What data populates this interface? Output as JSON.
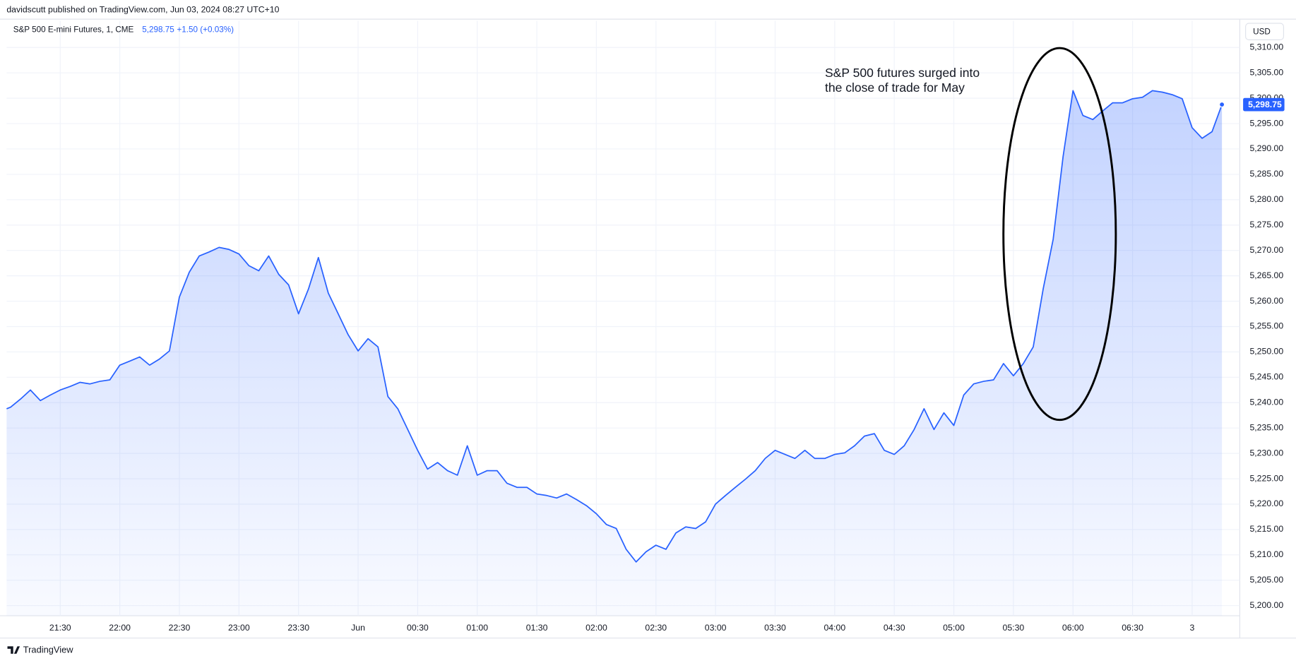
{
  "header": {
    "publisher": "davidscutt published on TradingView.com, Jun 03, 2024 08:27 UTC+10",
    "symbol": "S&P 500 E-mini Futures, 1, CME",
    "price": "5,298.75",
    "change": "+1.50 (+0.03%)",
    "currency": "USD",
    "footer": "TradingView"
  },
  "chart_data": {
    "type": "area",
    "annotation": [
      "S&P 500 futures surged into",
      "the close of trade for May"
    ],
    "last_price_label": "5,298.75",
    "series": [
      {
        "name": "S&P 500 E-mini Futures",
        "color": "#2962ff",
        "x": [
          3,
          5,
          10,
          15,
          20,
          25,
          30,
          35,
          40,
          45,
          50,
          55,
          60,
          65,
          70,
          75,
          80,
          85,
          90,
          95,
          100,
          105,
          110,
          115,
          120,
          125,
          130,
          135,
          140,
          145,
          150,
          155,
          160,
          165,
          170,
          175,
          180,
          185,
          190,
          195,
          200,
          205,
          210,
          215,
          220,
          225,
          230,
          235,
          240,
          245,
          250,
          255,
          260,
          265,
          270,
          275,
          280,
          285,
          290,
          295,
          300,
          305,
          310,
          315,
          320,
          325,
          330,
          335,
          340,
          345,
          350,
          355,
          360,
          365,
          370,
          375,
          380,
          385,
          390,
          395,
          400,
          405,
          410,
          415,
          420,
          425,
          430,
          435,
          440,
          445,
          450,
          455,
          460,
          465,
          470,
          475,
          480,
          485,
          490,
          495,
          500,
          505,
          510,
          515,
          520,
          525,
          530,
          535,
          540,
          545,
          550,
          555,
          560,
          565,
          570,
          575,
          580,
          585,
          590,
          595,
          600,
          605,
          610,
          615
        ],
        "values": [
          5238.8,
          5239.1,
          5240.7,
          5242.5,
          5240.4,
          5241.5,
          5242.5,
          5243.2,
          5244,
          5243.7,
          5244.2,
          5244.5,
          5247.4,
          5248.2,
          5249,
          5247.4,
          5248.6,
          5250.2,
          5260.8,
          5265.7,
          5268.9,
          5269.7,
          5270.6,
          5270.2,
          5269.3,
          5267,
          5266,
          5268.9,
          5265.3,
          5263.2,
          5257.5,
          5262.4,
          5268.6,
          5261.6,
          5257.5,
          5253.4,
          5250.2,
          5252.6,
          5251,
          5241.2,
          5238.8,
          5234.7,
          5230.6,
          5226.9,
          5228.2,
          5226.6,
          5225.7,
          5231.5,
          5225.7,
          5226.6,
          5226.6,
          5224.1,
          5223.3,
          5223.3,
          5222,
          5221.7,
          5221.2,
          5222,
          5220.9,
          5219.7,
          5218.1,
          5216,
          5215.2,
          5211.1,
          5208.6,
          5210.6,
          5211.9,
          5211.1,
          5214.3,
          5215.5,
          5215.2,
          5216.5,
          5220,
          5221.7,
          5223.3,
          5224.9,
          5226.6,
          5229,
          5230.6,
          5229.8,
          5229,
          5230.6,
          5229,
          5229,
          5229.8,
          5230.1,
          5231.5,
          5233.4,
          5233.9,
          5230.6,
          5229.8,
          5231.5,
          5234.7,
          5238.8,
          5234.7,
          5238,
          5235.5,
          5241.5,
          5243.7,
          5244.2,
          5244.5,
          5247.7,
          5245.3,
          5247.7,
          5251,
          5262.4,
          5272.2,
          5288.5,
          5301.5,
          5296.6,
          5295.8,
          5297.5,
          5299.1,
          5299.1,
          5299.9,
          5300.2,
          5301.5,
          5301.2,
          5300.7,
          5299.9,
          5294.2,
          5292.1,
          5293.4,
          5298.75
        ]
      }
    ],
    "xlim": [
      3,
      624
    ],
    "xticks": [
      {
        "value": 30,
        "label": "21:30"
      },
      {
        "value": 60,
        "label": "22:00"
      },
      {
        "value": 90,
        "label": "22:30"
      },
      {
        "value": 120,
        "label": "23:00"
      },
      {
        "value": 150,
        "label": "23:30"
      },
      {
        "value": 180,
        "label": "Jun"
      },
      {
        "value": 210,
        "label": "00:30"
      },
      {
        "value": 240,
        "label": "01:00"
      },
      {
        "value": 270,
        "label": "01:30"
      },
      {
        "value": 300,
        "label": "02:00"
      },
      {
        "value": 330,
        "label": "02:30"
      },
      {
        "value": 360,
        "label": "03:00"
      },
      {
        "value": 390,
        "label": "03:30"
      },
      {
        "value": 420,
        "label": "04:00"
      },
      {
        "value": 450,
        "label": "04:30"
      },
      {
        "value": 480,
        "label": "05:00"
      },
      {
        "value": 510,
        "label": "05:30"
      },
      {
        "value": 540,
        "label": "06:00"
      },
      {
        "value": 570,
        "label": "06:30"
      },
      {
        "value": 600,
        "label": "3"
      }
    ],
    "ylim": [
      5198,
      5312
    ],
    "yticks": [
      {
        "value": 5200,
        "label": "5,200.00"
      },
      {
        "value": 5205,
        "label": "5,205.00"
      },
      {
        "value": 5210,
        "label": "5,210.00"
      },
      {
        "value": 5215,
        "label": "5,215.00"
      },
      {
        "value": 5220,
        "label": "5,220.00"
      },
      {
        "value": 5225,
        "label": "5,225.00"
      },
      {
        "value": 5230,
        "label": "5,230.00"
      },
      {
        "value": 5235,
        "label": "5,235.00"
      },
      {
        "value": 5240,
        "label": "5,240.00"
      },
      {
        "value": 5245,
        "label": "5,245.00"
      },
      {
        "value": 5250,
        "label": "5,250.00"
      },
      {
        "value": 5255,
        "label": "5,255.00"
      },
      {
        "value": 5260,
        "label": "5,260.00"
      },
      {
        "value": 5265,
        "label": "5,265.00"
      },
      {
        "value": 5270,
        "label": "5,270.00"
      },
      {
        "value": 5275,
        "label": "5,275.00"
      },
      {
        "value": 5280,
        "label": "5,280.00"
      },
      {
        "value": 5285,
        "label": "5,285.00"
      },
      {
        "value": 5290,
        "label": "5,290.00"
      },
      {
        "value": 5295,
        "label": "5,295.00"
      },
      {
        "value": 5300,
        "label": "5,300.00"
      },
      {
        "value": 5305,
        "label": "5,305.00"
      },
      {
        "value": 5310,
        "label": "5,310.00"
      }
    ],
    "grid": true
  }
}
